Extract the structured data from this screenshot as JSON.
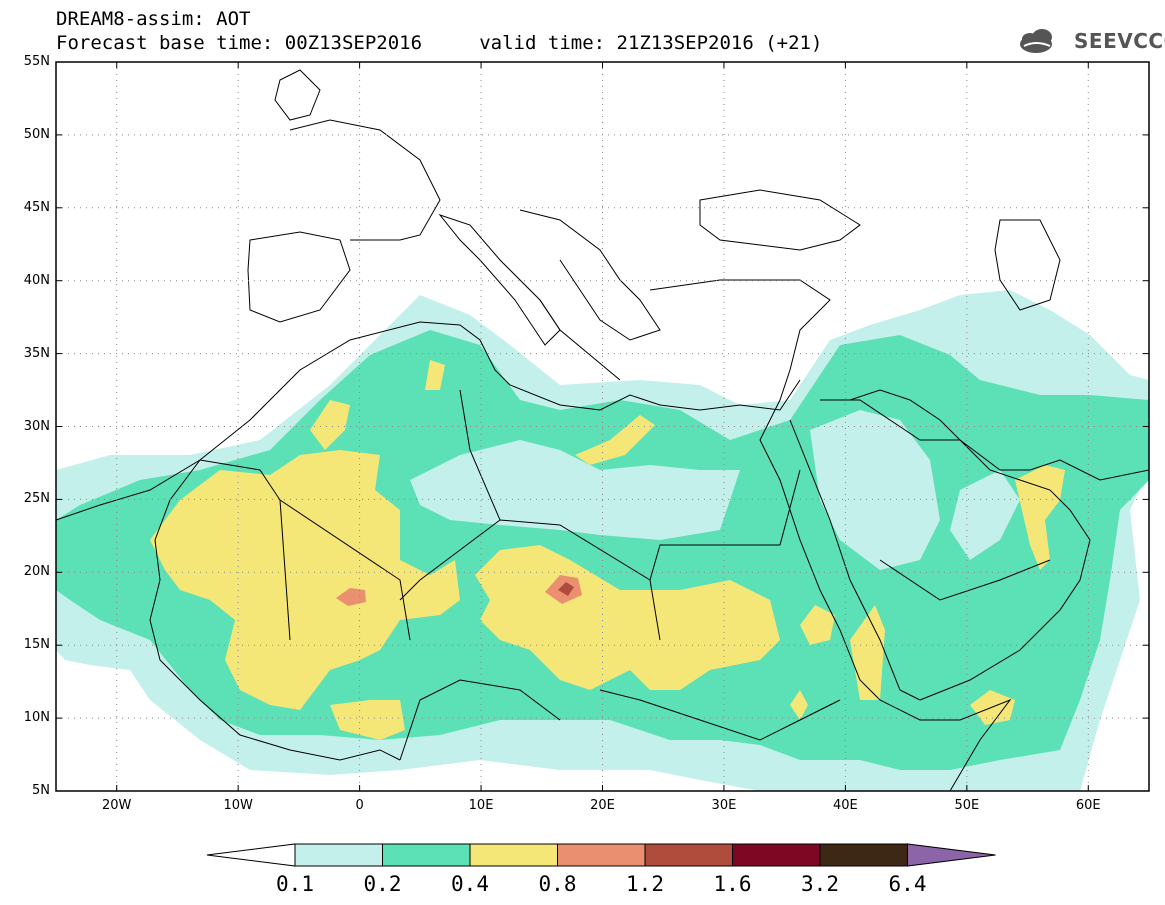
{
  "title": {
    "line1": "DREAM8-assim: AOT",
    "line2": "Forecast base time: 00Z13SEP2016     valid time: 21Z13SEP2016 (+21)"
  },
  "logo": {
    "text": "SEEVCCC"
  },
  "map": {
    "lon_range": [
      -25,
      65
    ],
    "lat_range": [
      5,
      55
    ],
    "lat_ticks": [
      {
        "lat": 55,
        "label": "55N"
      },
      {
        "lat": 50,
        "label": "50N"
      },
      {
        "lat": 45,
        "label": "45N"
      },
      {
        "lat": 40,
        "label": "40N"
      },
      {
        "lat": 35,
        "label": "35N"
      },
      {
        "lat": 30,
        "label": "30N"
      },
      {
        "lat": 25,
        "label": "25N"
      },
      {
        "lat": 20,
        "label": "20N"
      },
      {
        "lat": 15,
        "label": "15N"
      },
      {
        "lat": 10,
        "label": "10N"
      },
      {
        "lat": 5,
        "label": "5N"
      }
    ],
    "lon_ticks": [
      {
        "lon": -20,
        "label": "20W"
      },
      {
        "lon": -10,
        "label": "10W"
      },
      {
        "lon": 0,
        "label": "0"
      },
      {
        "lon": 10,
        "label": "10E"
      },
      {
        "lon": 20,
        "label": "20E"
      },
      {
        "lon": 30,
        "label": "30E"
      },
      {
        "lon": 40,
        "label": "40E"
      },
      {
        "lon": 50,
        "label": "50E"
      },
      {
        "lon": 60,
        "label": "60E"
      }
    ],
    "grid": true
  },
  "colorbar": {
    "levels": [
      "0.1",
      "0.2",
      "0.4",
      "0.8",
      "1.2",
      "1.6",
      "3.2",
      "6.4"
    ],
    "colors": [
      "#ffffff",
      "#c4f0eb",
      "#5ce0b5",
      "#f5e678",
      "#ea9070",
      "#b04c3c",
      "#7e0824",
      "#3c2814",
      "#8c64a8"
    ]
  }
}
